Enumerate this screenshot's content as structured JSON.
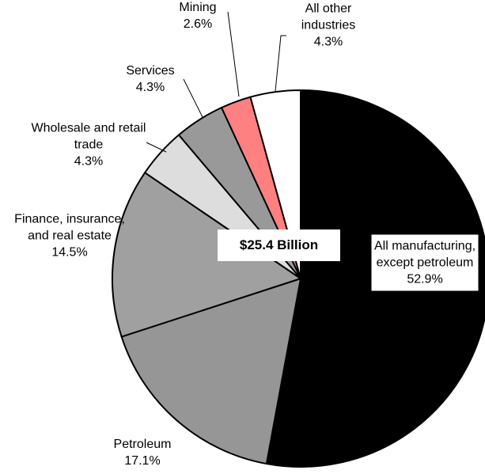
{
  "chart_data": {
    "type": "pie",
    "categories": [
      "All manufacturing, except petroleum",
      "Petroleum",
      "Finance, insurance, and real estate",
      "Wholesale and retail trade",
      "Services",
      "Mining",
      "All other industries"
    ],
    "values": [
      52.9,
      17.1,
      14.5,
      4.3,
      4.3,
      2.6,
      4.3
    ],
    "value_labels": [
      "52.9%",
      "17.1%",
      "14.5%",
      "4.3%",
      "4.3%",
      "2.6%",
      "4.3%"
    ],
    "colors": [
      "#000000",
      "#969696",
      "#a0a0a0",
      "#dddddd",
      "#999999",
      "#ff8080",
      "#ffffff"
    ],
    "center_label": "$25.4 Billion"
  }
}
